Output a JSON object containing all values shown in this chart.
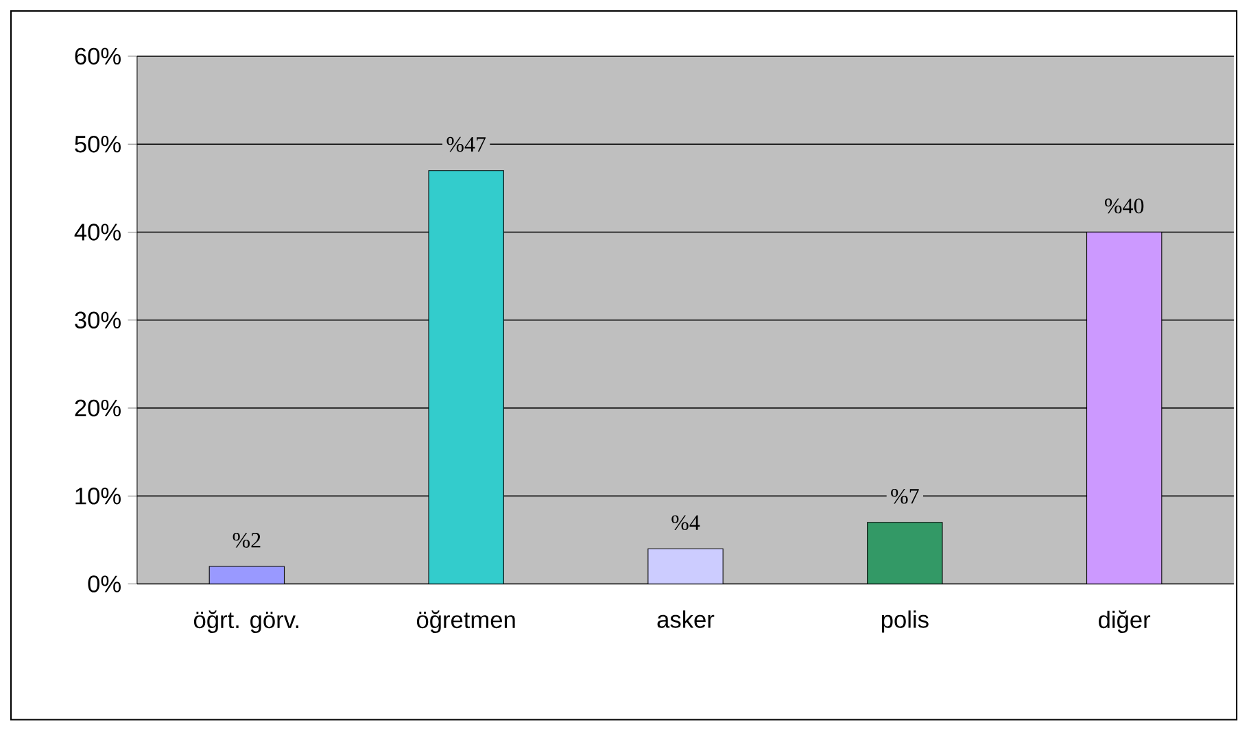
{
  "chart_data": {
    "type": "bar",
    "categories": [
      "öğrt. görv.",
      "öğretmen",
      "asker",
      "polis",
      "diğer"
    ],
    "values": [
      2,
      47,
      4,
      7,
      40
    ],
    "colors": [
      "#9999ff",
      "#33cccc",
      "#ccccff",
      "#339966",
      "#cc99ff"
    ],
    "value_labels": [
      "%2",
      "%47",
      "%4",
      "%7",
      "%40"
    ],
    "ylim": [
      0,
      60
    ],
    "yticks": [
      {
        "value": 0,
        "label": "0%"
      },
      {
        "value": 10,
        "label": "10%"
      },
      {
        "value": 20,
        "label": "20%"
      },
      {
        "value": 30,
        "label": "30%"
      },
      {
        "value": 40,
        "label": "40%"
      },
      {
        "value": 50,
        "label": "50%"
      },
      {
        "value": 60,
        "label": "60%"
      }
    ],
    "grid": "y"
  }
}
